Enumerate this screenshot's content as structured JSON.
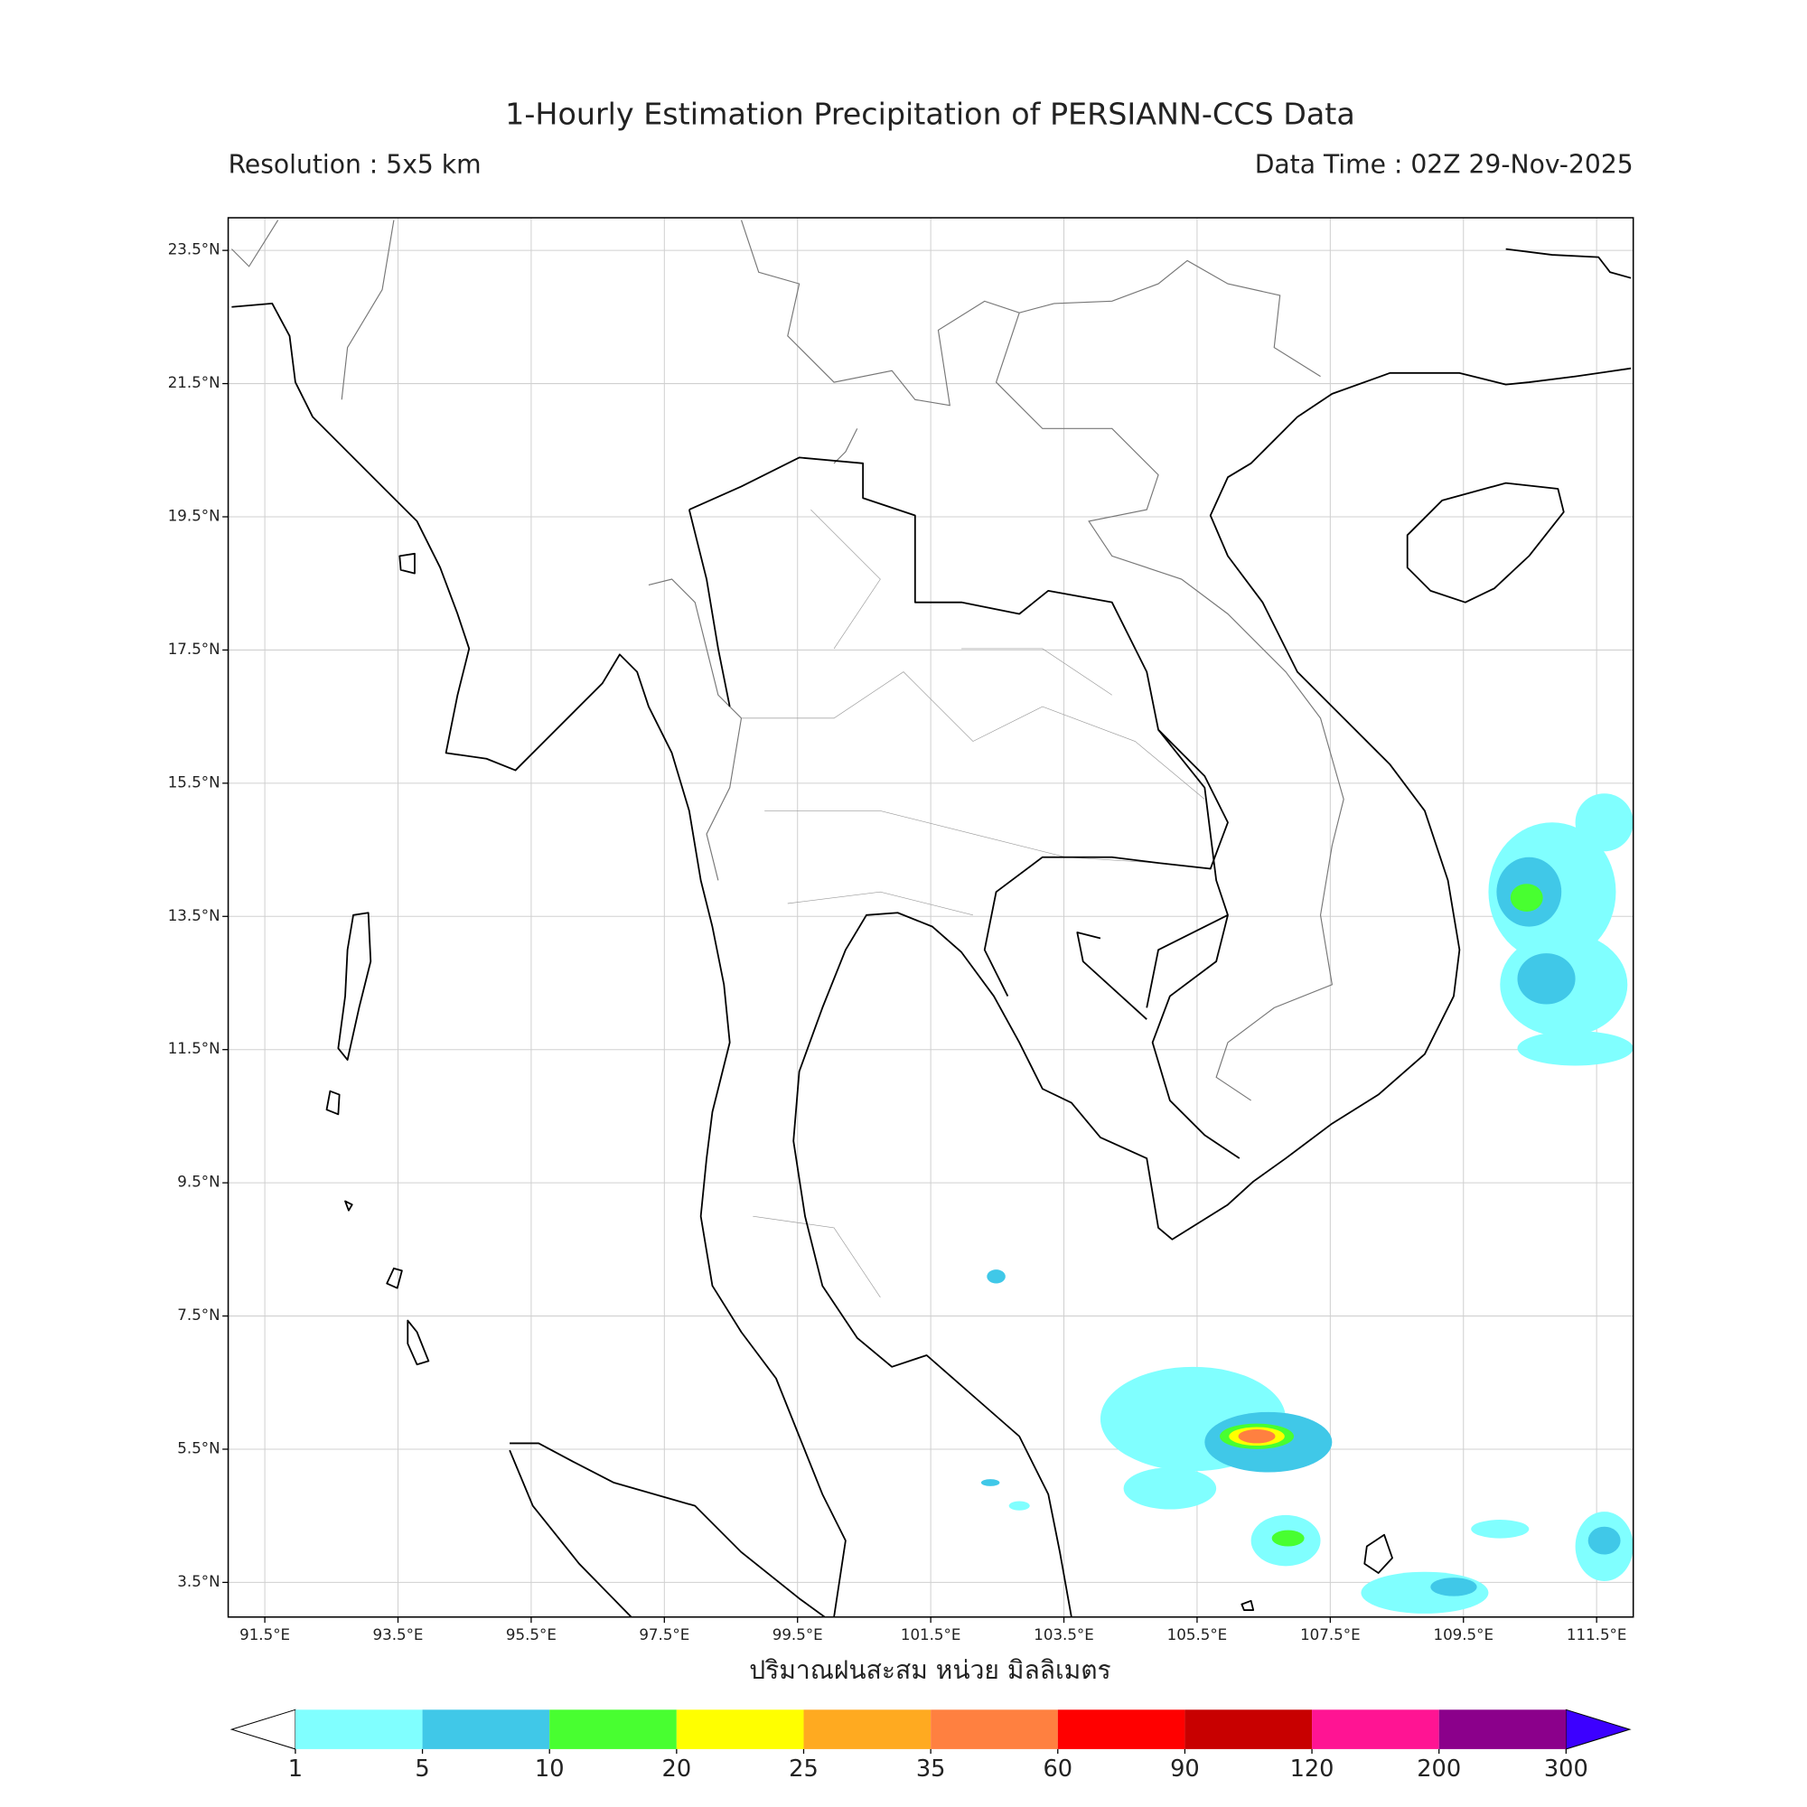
{
  "title": "1-Hourly Estimation Precipitation of PERSIANN-CCS Data",
  "subtitle_left": "Resolution : 5x5 km",
  "subtitle_right": "Data Time : 02Z 29-Nov-2025",
  "map": {
    "xlim": [
      90.95,
      112.05
    ],
    "ylim": [
      2.98,
      23.99
    ],
    "grid": true,
    "xticks": [
      {
        "value": 91.5,
        "label": "91.5°E"
      },
      {
        "value": 93.5,
        "label": "93.5°E"
      },
      {
        "value": 95.5,
        "label": "95.5°E"
      },
      {
        "value": 97.5,
        "label": "97.5°E"
      },
      {
        "value": 99.5,
        "label": "99.5°E"
      },
      {
        "value": 101.5,
        "label": "101.5°E"
      },
      {
        "value": 103.5,
        "label": "103.5°E"
      },
      {
        "value": 105.5,
        "label": "105.5°E"
      },
      {
        "value": 107.5,
        "label": "107.5°E"
      },
      {
        "value": 109.5,
        "label": "109.5°E"
      },
      {
        "value": 111.5,
        "label": "111.5°E"
      }
    ],
    "yticks": [
      {
        "value": 23.5,
        "label": "23.5°N"
      },
      {
        "value": 21.5,
        "label": "21.5°N"
      },
      {
        "value": 19.5,
        "label": "19.5°N"
      },
      {
        "value": 17.5,
        "label": "17.5°N"
      },
      {
        "value": 15.5,
        "label": "15.5°N"
      },
      {
        "value": 13.5,
        "label": "13.5°N"
      },
      {
        "value": 11.5,
        "label": "11.5°N"
      },
      {
        "value": 9.5,
        "label": "9.5°N"
      },
      {
        "value": 7.5,
        "label": "7.5°N"
      },
      {
        "value": 5.5,
        "label": "5.5°N"
      },
      {
        "value": 3.5,
        "label": "3.5°N"
      }
    ],
    "xlabel": "ปริมาณฝนสะสม หน่วย มิลลิเมตร"
  },
  "colorbar": {
    "levels": [
      1,
      5,
      10,
      20,
      25,
      35,
      60,
      90,
      120,
      200,
      300
    ],
    "colors": [
      "#80ffff",
      "#40c8e8",
      "#48ff30",
      "#ffff00",
      "#ffaa20",
      "#ff8040",
      "#ff0000",
      "#c80000",
      "#ff1493",
      "#8b008b"
    ],
    "under_color": "#ffffff",
    "over_color": "#3c00ff"
  }
}
